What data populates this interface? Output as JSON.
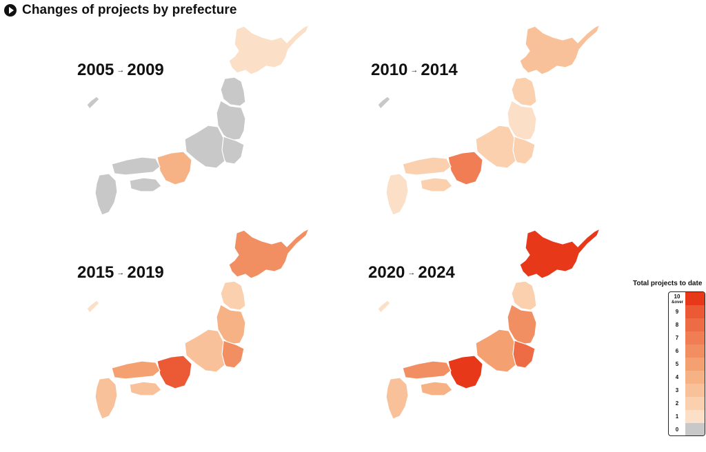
{
  "header": {
    "icon": "play-circle-icon",
    "title": "Changes of projects by prefecture"
  },
  "legend": {
    "title": "Total projects to date",
    "items": [
      {
        "label": "10\n&over",
        "value": 10,
        "color": "#e8381a"
      },
      {
        "label": "9",
        "value": 9,
        "color": "#eb5a35"
      },
      {
        "label": "8",
        "value": 8,
        "color": "#ee6c45"
      },
      {
        "label": "7",
        "value": 7,
        "color": "#f07d53"
      },
      {
        "label": "6",
        "value": 6,
        "color": "#f28f62"
      },
      {
        "label": "5",
        "value": 5,
        "color": "#f4a070"
      },
      {
        "label": "4",
        "value": 4,
        "color": "#f6b184"
      },
      {
        "label": "3",
        "value": 3,
        "color": "#f8c19a"
      },
      {
        "label": "2",
        "value": 2,
        "color": "#fad0ae"
      },
      {
        "label": "1",
        "value": 1,
        "color": "#fbdfc6"
      },
      {
        "label": "0",
        "value": 0,
        "color": "#c8c8c8"
      }
    ]
  },
  "panels": [
    {
      "start": "2005",
      "arrow": "→",
      "end": "2009",
      "regions": {
        "hokkaido": 1,
        "tohoku_n": 0,
        "tohoku_s": 0,
        "kanto": 0,
        "chubu": 0,
        "kinki": 4,
        "chugoku": 0,
        "shikoku": 0,
        "kyushu": 0,
        "okinawa": 0
      }
    },
    {
      "start": "2010",
      "arrow": "→",
      "end": "2014",
      "regions": {
        "hokkaido": 3,
        "tohoku_n": 2,
        "tohoku_s": 1,
        "kanto": 2,
        "chubu": 2,
        "kinki": 7,
        "chugoku": 2,
        "shikoku": 2,
        "kyushu": 1,
        "okinawa": 0
      }
    },
    {
      "start": "2015",
      "arrow": "→",
      "end": "2019",
      "regions": {
        "hokkaido": 6,
        "tohoku_n": 2,
        "tohoku_s": 4,
        "kanto": 6,
        "chubu": 3,
        "kinki": 9,
        "chugoku": 5,
        "shikoku": 3,
        "kyushu": 3,
        "okinawa": 1
      }
    },
    {
      "start": "2020",
      "arrow": "→",
      "end": "2024",
      "regions": {
        "hokkaido": 10,
        "tohoku_n": 2,
        "tohoku_s": 6,
        "kanto": 8,
        "chubu": 5,
        "kinki": 10,
        "chugoku": 6,
        "shikoku": 4,
        "kyushu": 3,
        "okinawa": 1
      }
    }
  ]
}
